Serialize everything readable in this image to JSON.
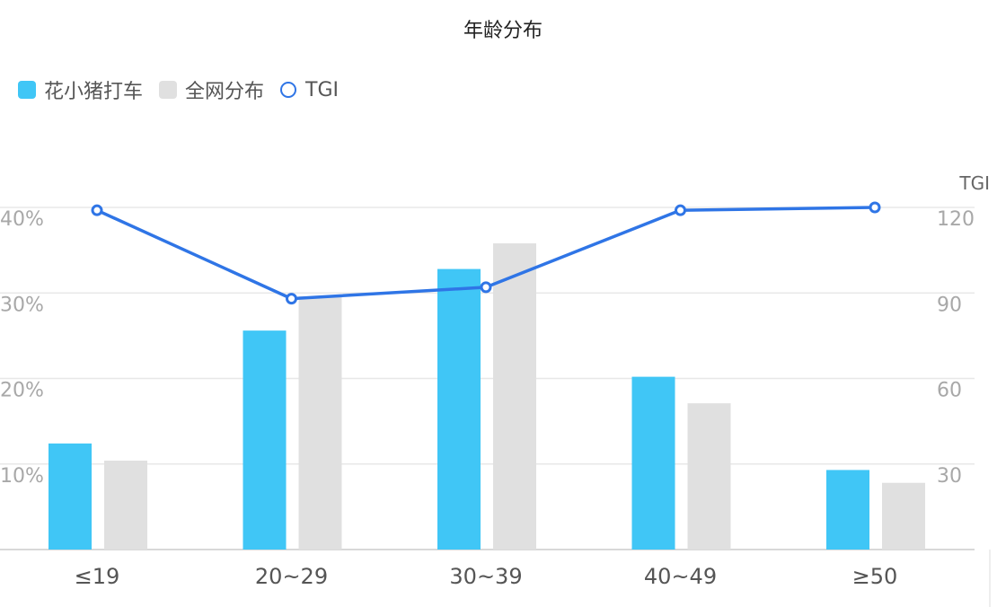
{
  "chart_data": {
    "type": "bar",
    "title": "年龄分布",
    "categories": [
      "≤19",
      "20~29",
      "30~39",
      "40~49",
      "≥50"
    ],
    "series": [
      {
        "name": "花小猪打车",
        "type": "bar",
        "axis": "left",
        "color": "#40c6f6",
        "values": [
          12.4,
          25.6,
          32.8,
          20.2,
          9.3
        ]
      },
      {
        "name": "全网分布",
        "type": "bar",
        "axis": "left",
        "color": "#e0e0e0",
        "values": [
          10.4,
          29.6,
          35.8,
          17.1,
          7.8
        ]
      },
      {
        "name": "TGI",
        "type": "line",
        "axis": "right",
        "color": "#2f75e6",
        "values": [
          119,
          88,
          92,
          119,
          120
        ]
      }
    ],
    "y_left": {
      "min": 0,
      "max": 40,
      "ticks": [
        10,
        20,
        30,
        40
      ],
      "tick_labels": [
        "10%",
        "20%",
        "30%",
        "40%"
      ]
    },
    "y_right": {
      "min": 0,
      "max": 120,
      "label": "TGI",
      "ticks": [
        30,
        60,
        90,
        120
      ],
      "tick_labels": [
        "30",
        "60",
        "90",
        "120"
      ]
    },
    "grid": true,
    "legend_position": "top-left"
  }
}
